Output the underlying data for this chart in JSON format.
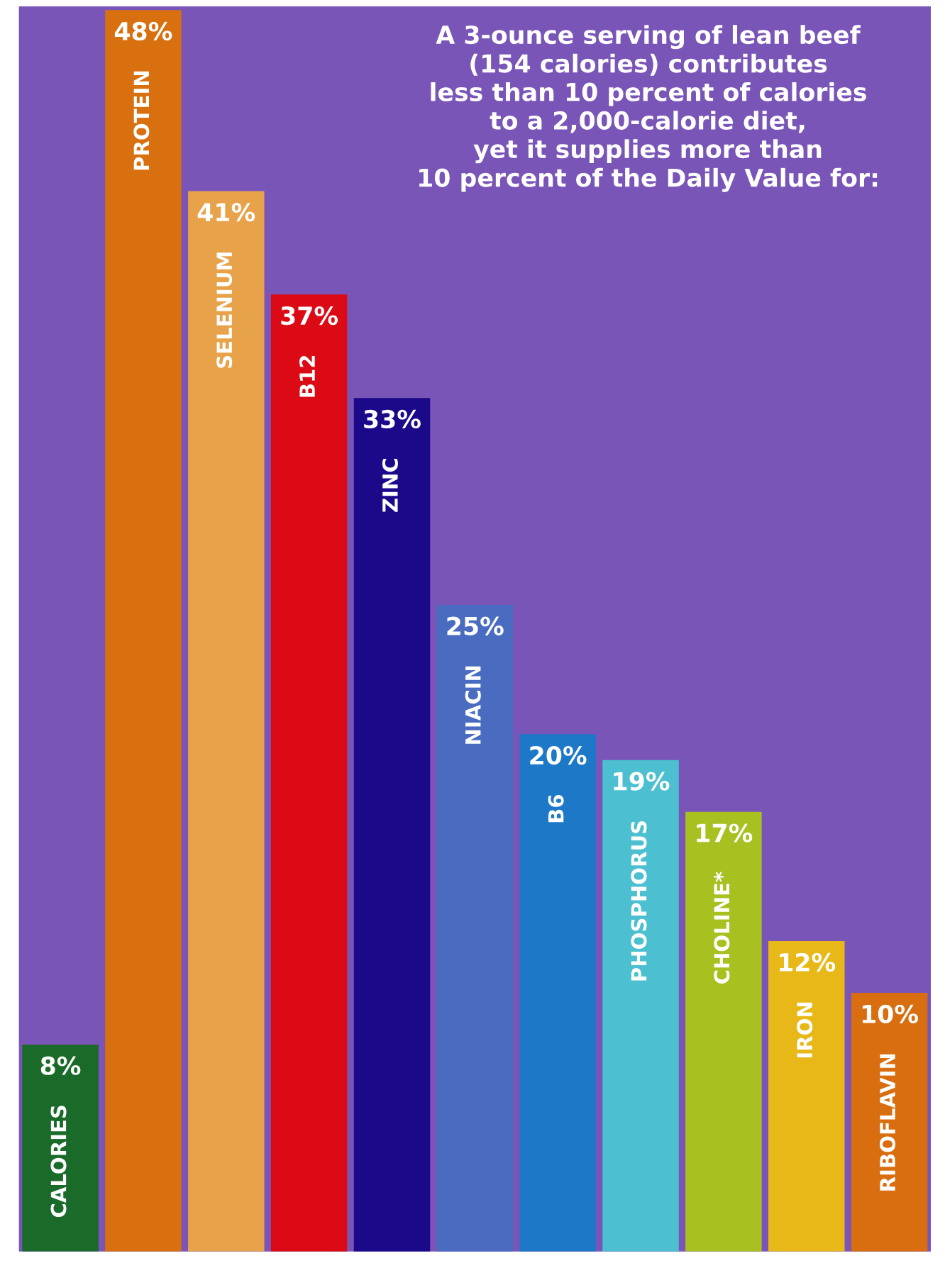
{
  "chart_data": {
    "type": "bar",
    "title": "A 3-ounce serving of lean beef\n(154 calories) contributes\nless than 10 percent of calories\nto a 2,000-calorie diet,\nyet it supplies more than\n10 percent of the Daily Value for:",
    "categories": [
      "CALORIES",
      "PROTEIN",
      "SELENIUM",
      "B12",
      "ZINC",
      "NIACIN",
      "B6",
      "PHOSPHORUS",
      "CHOLINE*",
      "IRON",
      "RIBOFLAVIN"
    ],
    "values": [
      8,
      48,
      41,
      37,
      33,
      25,
      20,
      19,
      17,
      12,
      10
    ],
    "colors": [
      "#1a6b2a",
      "#d9700f",
      "#e8a24a",
      "#dc0a14",
      "#1a0a8a",
      "#4a6cc0",
      "#1e78c8",
      "#4cc0d0",
      "#a8c020",
      "#e8b818",
      "#d86e10"
    ],
    "value_labels": [
      "8%",
      "48%",
      "41%",
      "37%",
      "33%",
      "25%",
      "20%",
      "19%",
      "17%",
      "12%",
      "10%"
    ]
  }
}
